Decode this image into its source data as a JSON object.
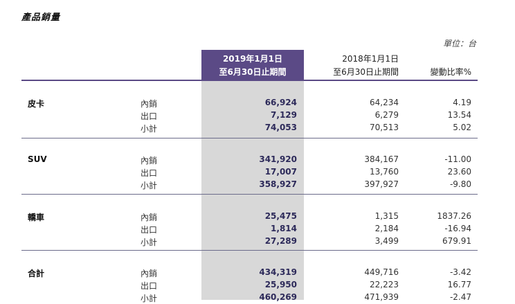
{
  "title": "產品銷量",
  "unit_label": "單位：台",
  "headers": {
    "current_line1": "2019年1月1日",
    "current_line2": "至6月30日止期間",
    "previous_line1": "2018年1月1日",
    "previous_line2": "至6月30日止期間",
    "change": "變動比率%"
  },
  "groups": [
    {
      "category": "皮卡",
      "rows": [
        {
          "label": "內銷",
          "current": "66,924",
          "previous": "64,234",
          "change": "4.19"
        },
        {
          "label": "出口",
          "current": "7,129",
          "previous": "6,279",
          "change": "13.54"
        },
        {
          "label": "小計",
          "current": "74,053",
          "previous": "70,513",
          "change": "5.02"
        }
      ]
    },
    {
      "category": "SUV",
      "rows": [
        {
          "label": "內銷",
          "current": "341,920",
          "previous": "384,167",
          "change": "-11.00"
        },
        {
          "label": "出口",
          "current": "17,007",
          "previous": "13,760",
          "change": "23.60"
        },
        {
          "label": "小計",
          "current": "358,927",
          "previous": "397,927",
          "change": "-9.80"
        }
      ]
    },
    {
      "category": "轎車",
      "rows": [
        {
          "label": "內銷",
          "current": "25,475",
          "previous": "1,315",
          "change": "1837.26"
        },
        {
          "label": "出口",
          "current": "1,814",
          "previous": "2,184",
          "change": "-16.94"
        },
        {
          "label": "小計",
          "current": "27,289",
          "previous": "3,499",
          "change": "679.91"
        }
      ]
    },
    {
      "category": "合計",
      "rows": [
        {
          "label": "內銷",
          "current": "434,319",
          "previous": "449,716",
          "change": "-3.42"
        },
        {
          "label": "出口",
          "current": "25,950",
          "previous": "22,223",
          "change": "16.77"
        },
        {
          "label": "小計",
          "current": "460,269",
          "previous": "471,939",
          "change": "-2.47"
        }
      ]
    }
  ]
}
